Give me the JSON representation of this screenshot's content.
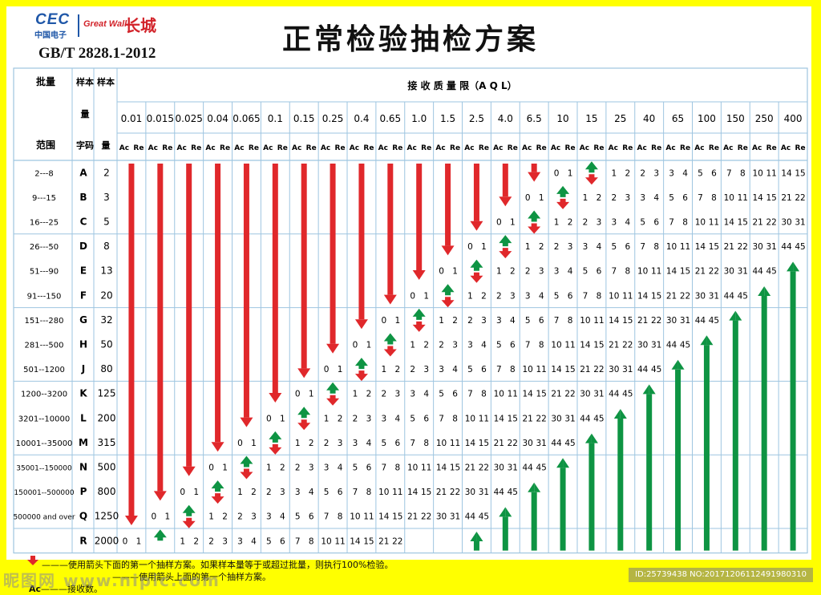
{
  "header": {
    "logo_cec": "CEC",
    "logo_cec_sub": "中国电子",
    "logo_greatwall": "Great Wall",
    "logo_mark": "长城",
    "standard": "GB/T 2828.1-2012",
    "title": "正常检验抽检方案"
  },
  "table": {
    "col_headers": {
      "batch_top": "批量",
      "batch_bottom": "范围",
      "sample_code_top": "样本",
      "sample_code_bottom": "字码",
      "sample_size_top": "样本",
      "sample_size_mid": "量",
      "sample_size_bottom": "量",
      "aql_title": "接 收 质 量 限（A Q L）",
      "ac": "Ac",
      "re": "Re"
    },
    "aql": [
      "0.01",
      "0.015",
      "0.025",
      "0.04",
      "0.065",
      "0.1",
      "0.15",
      "0.25",
      "0.4",
      "0.65",
      "1.0",
      "1.5",
      "2.5",
      "4.0",
      "6.5",
      "10",
      "15",
      "25",
      "40",
      "65",
      "100",
      "150",
      "250",
      "400"
    ],
    "rows": [
      {
        "batch": "2---8",
        "code": "A",
        "n": "2"
      },
      {
        "batch": "9---15",
        "code": "B",
        "n": "3"
      },
      {
        "batch": "16---25",
        "code": "C",
        "n": "5"
      },
      {
        "batch": "26---50",
        "code": "D",
        "n": "8"
      },
      {
        "batch": "51---90",
        "code": "E",
        "n": "13"
      },
      {
        "batch": "91---150",
        "code": "F",
        "n": "20"
      },
      {
        "batch": "151---280",
        "code": "G",
        "n": "32"
      },
      {
        "batch": "281---500",
        "code": "H",
        "n": "50"
      },
      {
        "batch": "501--1200",
        "code": "J",
        "n": "80"
      },
      {
        "batch": "1200--3200",
        "code": "K",
        "n": "125"
      },
      {
        "batch": "3201--10000",
        "code": "L",
        "n": "200"
      },
      {
        "batch": "10001--35000",
        "code": "M",
        "n": "315"
      },
      {
        "batch": "35001--150000",
        "code": "N",
        "n": "500"
      },
      {
        "batch": "150001--500000",
        "code": "P",
        "n": "800"
      },
      {
        "batch": "500000 and over",
        "code": "Q",
        "n": "1250"
      },
      {
        "batch": "",
        "code": "R",
        "n": "2000"
      }
    ],
    "pairs": [
      [
        0,
        1
      ],
      [
        1,
        2
      ],
      [
        2,
        3
      ],
      [
        3,
        4
      ],
      [
        5,
        6
      ],
      [
        7,
        8
      ],
      [
        10,
        11
      ],
      [
        14,
        15
      ],
      [
        21,
        22
      ],
      [
        30,
        31
      ],
      [
        44,
        45
      ]
    ],
    "colors": {
      "down_arrow": "#e0282b",
      "up_arrow": "#0e9443",
      "grid": "#9ec5e0",
      "header_bg": "#ffffff"
    }
  },
  "footer": {
    "arrow_note": "———使用箭头下面的第一个抽样方案。如果样本量等于或超过批量，则执行100%检验。",
    "arrow_up_note": "———使用箭头上面的第一个抽样方案。",
    "ac_label": "Ac",
    "ac_note": "———接收数。",
    "watermark_left": "昵图网 www.nipic.com",
    "watermark_right": "ID:25739438 NO:20171206112491980310"
  }
}
